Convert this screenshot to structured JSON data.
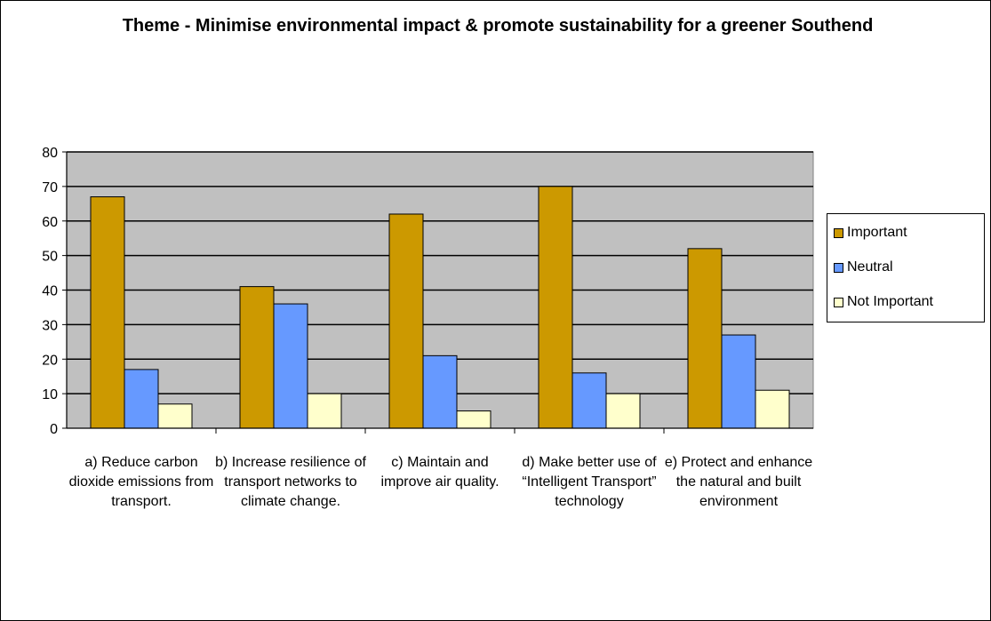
{
  "chart_data": {
    "type": "bar",
    "title": "Theme - Minimise environmental impact & promote sustainability for a greener Southend",
    "categories": [
      "a) Reduce carbon dioxide emissions from transport.",
      "b) Increase resilience of transport networks to climate change.",
      "c) Maintain and improve air quality.",
      "d) Make better use of “Intelligent Transport” technology",
      "e) Protect and enhance the natural and built environment"
    ],
    "series": [
      {
        "name": "Important",
        "color": "#cc9900",
        "values": [
          67,
          41,
          62,
          70,
          52
        ]
      },
      {
        "name": "Neutral",
        "color": "#6699ff",
        "values": [
          17,
          36,
          21,
          16,
          27
        ]
      },
      {
        "name": "Not Important",
        "color": "#ffffcc",
        "values": [
          7,
          10,
          5,
          10,
          11
        ]
      }
    ],
    "ylim": [
      0,
      80
    ],
    "yticks": [
      "0",
      "10",
      "20",
      "30",
      "40",
      "50",
      "60",
      "70",
      "80"
    ],
    "grid": true,
    "plot_background": "#c0c0c0",
    "legend_position": "right"
  }
}
